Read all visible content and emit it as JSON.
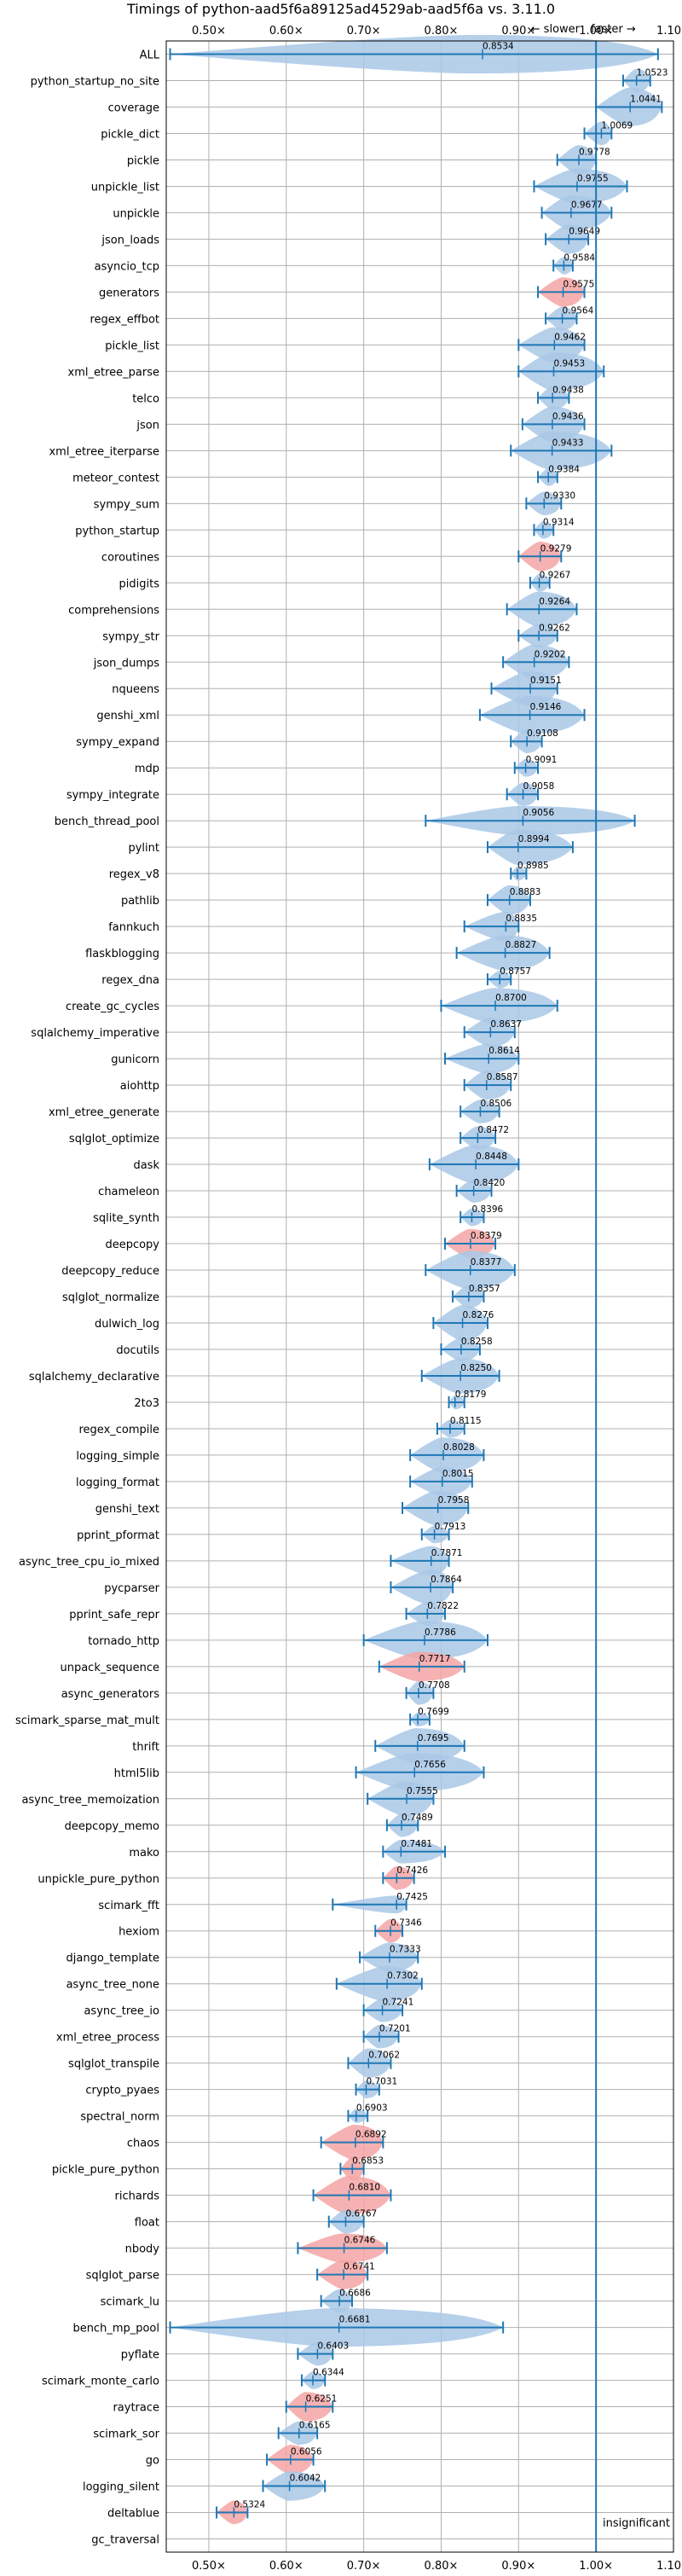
{
  "chart_data": {
    "type": "violin",
    "title": "Timings of python-aad5f6a89125ad4529ab-aad5f6a vs. 3.11.0",
    "annotations": {
      "slower": "← slower",
      "faster": "faster →",
      "insignificant": "insignificant"
    },
    "xlim": [
      0.445,
      1.1
    ],
    "xticks": [
      0.5,
      0.6,
      0.7,
      0.8,
      0.9,
      1.0,
      1.1
    ],
    "xtick_labels": [
      "0.50×",
      "0.60×",
      "0.70×",
      "0.80×",
      "0.90×",
      "1.00×",
      "1.10×"
    ],
    "reference_x": 1.0,
    "grid": true,
    "colors": {
      "normal": "#a9c8e6",
      "highlight": "#f4a5a5",
      "line": "#1f77b4"
    },
    "benchmarks": [
      {
        "name": "ALL",
        "value": 0.8534,
        "label": "0.8534",
        "lo": 0.45,
        "hi": 1.08,
        "width": 0.06,
        "highlight": false
      },
      {
        "name": "python_startup_no_site",
        "value": 1.0523,
        "label": "1.0523",
        "lo": 1.035,
        "hi": 1.07,
        "width": 0.02,
        "highlight": false
      },
      {
        "name": "coverage",
        "value": 1.0441,
        "label": "1.0441",
        "lo": 1.0,
        "hi": 1.085,
        "width": 0.035,
        "highlight": false
      },
      {
        "name": "pickle_dict",
        "value": 1.0069,
        "label": "1.0069",
        "lo": 0.985,
        "hi": 1.02,
        "width": 0.02,
        "highlight": false
      },
      {
        "name": "pickle",
        "value": 0.9778,
        "label": "0.9778",
        "lo": 0.95,
        "hi": 1.0,
        "width": 0.025,
        "highlight": false
      },
      {
        "name": "unpickle_list",
        "value": 0.9755,
        "label": "0.9755",
        "lo": 0.92,
        "hi": 1.04,
        "width": 0.03,
        "highlight": false
      },
      {
        "name": "unpickle",
        "value": 0.9677,
        "label": "0.9677",
        "lo": 0.93,
        "hi": 1.02,
        "width": 0.03,
        "highlight": false
      },
      {
        "name": "json_loads",
        "value": 0.9649,
        "label": "0.9649",
        "lo": 0.935,
        "hi": 0.99,
        "width": 0.025,
        "highlight": false
      },
      {
        "name": "asyncio_tcp",
        "value": 0.9584,
        "label": "0.9584",
        "lo": 0.945,
        "hi": 0.97,
        "width": 0.015,
        "highlight": false
      },
      {
        "name": "generators",
        "value": 0.9575,
        "label": "0.9575",
        "lo": 0.925,
        "hi": 0.985,
        "width": 0.025,
        "highlight": true
      },
      {
        "name": "regex_effbot",
        "value": 0.9564,
        "label": "0.9564",
        "lo": 0.935,
        "hi": 0.975,
        "width": 0.02,
        "highlight": false
      },
      {
        "name": "pickle_list",
        "value": 0.9462,
        "label": "0.9462",
        "lo": 0.9,
        "hi": 0.985,
        "width": 0.03,
        "highlight": false
      },
      {
        "name": "xml_etree_parse",
        "value": 0.9453,
        "label": "0.9453",
        "lo": 0.9,
        "hi": 1.01,
        "width": 0.035,
        "highlight": false
      },
      {
        "name": "telco",
        "value": 0.9438,
        "label": "0.9438",
        "lo": 0.925,
        "hi": 0.965,
        "width": 0.02,
        "highlight": false
      },
      {
        "name": "json",
        "value": 0.9436,
        "label": "0.9436",
        "lo": 0.905,
        "hi": 0.985,
        "width": 0.03,
        "highlight": false
      },
      {
        "name": "xml_etree_iterparse",
        "value": 0.9433,
        "label": "0.9433",
        "lo": 0.89,
        "hi": 1.02,
        "width": 0.035,
        "highlight": false
      },
      {
        "name": "meteor_contest",
        "value": 0.9384,
        "label": "0.9384",
        "lo": 0.925,
        "hi": 0.95,
        "width": 0.015,
        "highlight": false
      },
      {
        "name": "sympy_sum",
        "value": 0.933,
        "label": "0.9330",
        "lo": 0.91,
        "hi": 0.955,
        "width": 0.02,
        "highlight": false
      },
      {
        "name": "python_startup",
        "value": 0.9314,
        "label": "0.9314",
        "lo": 0.92,
        "hi": 0.945,
        "width": 0.015,
        "highlight": false
      },
      {
        "name": "coroutines",
        "value": 0.9279,
        "label": "0.9279",
        "lo": 0.9,
        "hi": 0.955,
        "width": 0.025,
        "highlight": true
      },
      {
        "name": "pidigits",
        "value": 0.9267,
        "label": "0.9267",
        "lo": 0.915,
        "hi": 0.94,
        "width": 0.015,
        "highlight": false
      },
      {
        "name": "comprehensions",
        "value": 0.9264,
        "label": "0.9264",
        "lo": 0.885,
        "hi": 0.975,
        "width": 0.03,
        "highlight": false
      },
      {
        "name": "sympy_str",
        "value": 0.9262,
        "label": "0.9262",
        "lo": 0.9,
        "hi": 0.95,
        "width": 0.02,
        "highlight": false
      },
      {
        "name": "json_dumps",
        "value": 0.9202,
        "label": "0.9202",
        "lo": 0.88,
        "hi": 0.965,
        "width": 0.03,
        "highlight": false
      },
      {
        "name": "nqueens",
        "value": 0.9151,
        "label": "0.9151",
        "lo": 0.865,
        "hi": 0.95,
        "width": 0.03,
        "highlight": false
      },
      {
        "name": "genshi_xml",
        "value": 0.9146,
        "label": "0.9146",
        "lo": 0.85,
        "hi": 0.985,
        "width": 0.035,
        "highlight": false
      },
      {
        "name": "sympy_expand",
        "value": 0.9108,
        "label": "0.9108",
        "lo": 0.89,
        "hi": 0.93,
        "width": 0.02,
        "highlight": false
      },
      {
        "name": "mdp",
        "value": 0.9091,
        "label": "0.9091",
        "lo": 0.895,
        "hi": 0.925,
        "width": 0.015,
        "highlight": false
      },
      {
        "name": "sympy_integrate",
        "value": 0.9058,
        "label": "0.9058",
        "lo": 0.885,
        "hi": 0.925,
        "width": 0.02,
        "highlight": false
      },
      {
        "name": "bench_thread_pool",
        "value": 0.9056,
        "label": "0.9056",
        "lo": 0.78,
        "hi": 1.05,
        "width": 0.025,
        "highlight": false
      },
      {
        "name": "pylint",
        "value": 0.8994,
        "label": "0.8994",
        "lo": 0.86,
        "hi": 0.97,
        "width": 0.03,
        "highlight": false
      },
      {
        "name": "regex_v8",
        "value": 0.8985,
        "label": "0.8985",
        "lo": 0.89,
        "hi": 0.91,
        "width": 0.012,
        "highlight": false
      },
      {
        "name": "pathlib",
        "value": 0.8883,
        "label": "0.8883",
        "lo": 0.86,
        "hi": 0.915,
        "width": 0.025,
        "highlight": false
      },
      {
        "name": "fannkuch",
        "value": 0.8835,
        "label": "0.8835",
        "lo": 0.83,
        "hi": 0.9,
        "width": 0.025,
        "highlight": false
      },
      {
        "name": "flaskblogging",
        "value": 0.8827,
        "label": "0.8827",
        "lo": 0.82,
        "hi": 0.94,
        "width": 0.03,
        "highlight": false
      },
      {
        "name": "regex_dna",
        "value": 0.8757,
        "label": "0.8757",
        "lo": 0.86,
        "hi": 0.89,
        "width": 0.015,
        "highlight": false
      },
      {
        "name": "create_gc_cycles",
        "value": 0.87,
        "label": "0.8700",
        "lo": 0.8,
        "hi": 0.95,
        "width": 0.03,
        "highlight": false
      },
      {
        "name": "sqlalchemy_imperative",
        "value": 0.8637,
        "label": "0.8637",
        "lo": 0.83,
        "hi": 0.895,
        "width": 0.025,
        "highlight": false
      },
      {
        "name": "gunicorn",
        "value": 0.8614,
        "label": "0.8614",
        "lo": 0.805,
        "hi": 0.9,
        "width": 0.025,
        "highlight": false
      },
      {
        "name": "aiohttp",
        "value": 0.8587,
        "label": "0.8587",
        "lo": 0.83,
        "hi": 0.89,
        "width": 0.025,
        "highlight": false
      },
      {
        "name": "xml_etree_generate",
        "value": 0.8506,
        "label": "0.8506",
        "lo": 0.825,
        "hi": 0.875,
        "width": 0.02,
        "highlight": false
      },
      {
        "name": "sqlglot_optimize",
        "value": 0.8472,
        "label": "0.8472",
        "lo": 0.825,
        "hi": 0.87,
        "width": 0.02,
        "highlight": false
      },
      {
        "name": "dask",
        "value": 0.8448,
        "label": "0.8448",
        "lo": 0.785,
        "hi": 0.9,
        "width": 0.035,
        "highlight": false
      },
      {
        "name": "chameleon",
        "value": 0.842,
        "label": "0.8420",
        "lo": 0.82,
        "hi": 0.865,
        "width": 0.02,
        "highlight": false
      },
      {
        "name": "sqlite_synth",
        "value": 0.8396,
        "label": "0.8396",
        "lo": 0.825,
        "hi": 0.855,
        "width": 0.015,
        "highlight": false
      },
      {
        "name": "deepcopy",
        "value": 0.8379,
        "label": "0.8379",
        "lo": 0.805,
        "hi": 0.87,
        "width": 0.025,
        "highlight": true
      },
      {
        "name": "deepcopy_reduce",
        "value": 0.8377,
        "label": "0.8377",
        "lo": 0.78,
        "hi": 0.895,
        "width": 0.035,
        "highlight": false
      },
      {
        "name": "sqlglot_normalize",
        "value": 0.8357,
        "label": "0.8357",
        "lo": 0.815,
        "hi": 0.855,
        "width": 0.02,
        "highlight": false
      },
      {
        "name": "dulwich_log",
        "value": 0.8276,
        "label": "0.8276",
        "lo": 0.79,
        "hi": 0.86,
        "width": 0.03,
        "highlight": false
      },
      {
        "name": "docutils",
        "value": 0.8258,
        "label": "0.8258",
        "lo": 0.8,
        "hi": 0.85,
        "width": 0.02,
        "highlight": false
      },
      {
        "name": "sqlalchemy_declarative",
        "value": 0.825,
        "label": "0.8250",
        "lo": 0.775,
        "hi": 0.875,
        "width": 0.03,
        "highlight": false
      },
      {
        "name": "2to3",
        "value": 0.8179,
        "label": "0.8179",
        "lo": 0.81,
        "hi": 0.83,
        "width": 0.012,
        "highlight": false
      },
      {
        "name": "regex_compile",
        "value": 0.8115,
        "label": "0.8115",
        "lo": 0.795,
        "hi": 0.83,
        "width": 0.015,
        "highlight": false
      },
      {
        "name": "logging_simple",
        "value": 0.8028,
        "label": "0.8028",
        "lo": 0.76,
        "hi": 0.855,
        "width": 0.03,
        "highlight": false
      },
      {
        "name": "logging_format",
        "value": 0.8015,
        "label": "0.8015",
        "lo": 0.76,
        "hi": 0.84,
        "width": 0.025,
        "highlight": false
      },
      {
        "name": "genshi_text",
        "value": 0.7958,
        "label": "0.7958",
        "lo": 0.75,
        "hi": 0.835,
        "width": 0.03,
        "highlight": false
      },
      {
        "name": "pprint_pformat",
        "value": 0.7913,
        "label": "0.7913",
        "lo": 0.775,
        "hi": 0.81,
        "width": 0.015,
        "highlight": false
      },
      {
        "name": "async_tree_cpu_io_mixed",
        "value": 0.7871,
        "label": "0.7871",
        "lo": 0.735,
        "hi": 0.81,
        "width": 0.025,
        "highlight": false
      },
      {
        "name": "pycparser",
        "value": 0.7864,
        "label": "0.7864",
        "lo": 0.735,
        "hi": 0.815,
        "width": 0.03,
        "highlight": false
      },
      {
        "name": "pprint_safe_repr",
        "value": 0.7822,
        "label": "0.7822",
        "lo": 0.755,
        "hi": 0.805,
        "width": 0.02,
        "highlight": false
      },
      {
        "name": "tornado_http",
        "value": 0.7786,
        "label": "0.7786",
        "lo": 0.7,
        "hi": 0.86,
        "width": 0.035,
        "highlight": false
      },
      {
        "name": "unpack_sequence",
        "value": 0.7717,
        "label": "0.7717",
        "lo": 0.72,
        "hi": 0.83,
        "width": 0.025,
        "highlight": true
      },
      {
        "name": "async_generators",
        "value": 0.7708,
        "label": "0.7708",
        "lo": 0.755,
        "hi": 0.79,
        "width": 0.02,
        "highlight": false
      },
      {
        "name": "scimark_sparse_mat_mult",
        "value": 0.7699,
        "label": "0.7699",
        "lo": 0.76,
        "hi": 0.785,
        "width": 0.012,
        "highlight": false
      },
      {
        "name": "thrift",
        "value": 0.7695,
        "label": "0.7695",
        "lo": 0.715,
        "hi": 0.83,
        "width": 0.03,
        "highlight": false
      },
      {
        "name": "html5lib",
        "value": 0.7656,
        "label": "0.7656",
        "lo": 0.69,
        "hi": 0.855,
        "width": 0.035,
        "highlight": false
      },
      {
        "name": "async_tree_memoization",
        "value": 0.7555,
        "label": "0.7555",
        "lo": 0.705,
        "hi": 0.79,
        "width": 0.03,
        "highlight": false
      },
      {
        "name": "deepcopy_memo",
        "value": 0.7489,
        "label": "0.7489",
        "lo": 0.73,
        "hi": 0.77,
        "width": 0.02,
        "highlight": false
      },
      {
        "name": "mako",
        "value": 0.7481,
        "label": "0.7481",
        "lo": 0.725,
        "hi": 0.805,
        "width": 0.02,
        "highlight": false
      },
      {
        "name": "unpickle_pure_python",
        "value": 0.7426,
        "label": "0.7426",
        "lo": 0.725,
        "hi": 0.765,
        "width": 0.02,
        "highlight": true
      },
      {
        "name": "scimark_fft",
        "value": 0.7425,
        "label": "0.7425",
        "lo": 0.66,
        "hi": 0.755,
        "width": 0.015,
        "highlight": false
      },
      {
        "name": "hexiom",
        "value": 0.7346,
        "label": "0.7346",
        "lo": 0.715,
        "hi": 0.75,
        "width": 0.02,
        "highlight": true
      },
      {
        "name": "django_template",
        "value": 0.7333,
        "label": "0.7333",
        "lo": 0.695,
        "hi": 0.77,
        "width": 0.025,
        "highlight": false
      },
      {
        "name": "async_tree_none",
        "value": 0.7302,
        "label": "0.7302",
        "lo": 0.665,
        "hi": 0.775,
        "width": 0.03,
        "highlight": false
      },
      {
        "name": "async_tree_io",
        "value": 0.7241,
        "label": "0.7241",
        "lo": 0.7,
        "hi": 0.75,
        "width": 0.02,
        "highlight": false
      },
      {
        "name": "xml_etree_process",
        "value": 0.7201,
        "label": "0.7201",
        "lo": 0.7,
        "hi": 0.745,
        "width": 0.02,
        "highlight": false
      },
      {
        "name": "sqlglot_transpile",
        "value": 0.7062,
        "label": "0.7062",
        "lo": 0.68,
        "hi": 0.735,
        "width": 0.025,
        "highlight": false
      },
      {
        "name": "crypto_pyaes",
        "value": 0.7031,
        "label": "0.7031",
        "lo": 0.69,
        "hi": 0.72,
        "width": 0.015,
        "highlight": false
      },
      {
        "name": "spectral_norm",
        "value": 0.6903,
        "label": "0.6903",
        "lo": 0.68,
        "hi": 0.705,
        "width": 0.012,
        "highlight": false
      },
      {
        "name": "chaos",
        "value": 0.6892,
        "label": "0.6892",
        "lo": 0.645,
        "hi": 0.725,
        "width": 0.03,
        "highlight": true
      },
      {
        "name": "pickle_pure_python",
        "value": 0.6853,
        "label": "0.6853",
        "lo": 0.67,
        "hi": 0.7,
        "width": 0.02,
        "highlight": true
      },
      {
        "name": "richards",
        "value": 0.681,
        "label": "0.6810",
        "lo": 0.635,
        "hi": 0.735,
        "width": 0.035,
        "highlight": true
      },
      {
        "name": "float",
        "value": 0.6767,
        "label": "0.6767",
        "lo": 0.655,
        "hi": 0.7,
        "width": 0.02,
        "highlight": false
      },
      {
        "name": "nbody",
        "value": 0.6746,
        "label": "0.6746",
        "lo": 0.615,
        "hi": 0.73,
        "width": 0.025,
        "highlight": true
      },
      {
        "name": "sqlglot_parse",
        "value": 0.6741,
        "label": "0.6741",
        "lo": 0.64,
        "hi": 0.705,
        "width": 0.025,
        "highlight": true
      },
      {
        "name": "scimark_lu",
        "value": 0.6686,
        "label": "0.6686",
        "lo": 0.645,
        "hi": 0.685,
        "width": 0.02,
        "highlight": false
      },
      {
        "name": "bench_mp_pool",
        "value": 0.6681,
        "label": "0.6681",
        "lo": 0.45,
        "hi": 0.88,
        "width": 0.04,
        "highlight": false
      },
      {
        "name": "pyflate",
        "value": 0.6403,
        "label": "0.6403",
        "lo": 0.615,
        "hi": 0.66,
        "width": 0.02,
        "highlight": false
      },
      {
        "name": "scimark_monte_carlo",
        "value": 0.6344,
        "label": "0.6344",
        "lo": 0.62,
        "hi": 0.65,
        "width": 0.015,
        "highlight": false
      },
      {
        "name": "raytrace",
        "value": 0.6251,
        "label": "0.6251",
        "lo": 0.6,
        "hi": 0.66,
        "width": 0.025,
        "highlight": true
      },
      {
        "name": "scimark_sor",
        "value": 0.6165,
        "label": "0.6165",
        "lo": 0.59,
        "hi": 0.64,
        "width": 0.02,
        "highlight": false
      },
      {
        "name": "go",
        "value": 0.6056,
        "label": "0.6056",
        "lo": 0.575,
        "hi": 0.635,
        "width": 0.025,
        "highlight": true
      },
      {
        "name": "logging_silent",
        "value": 0.6042,
        "label": "0.6042",
        "lo": 0.57,
        "hi": 0.65,
        "width": 0.025,
        "highlight": false
      },
      {
        "name": "deltablue",
        "value": 0.5324,
        "label": "0.5324",
        "lo": 0.51,
        "hi": 0.55,
        "width": 0.02,
        "highlight": true
      },
      {
        "name": "gc_traversal",
        "value": null,
        "label": "",
        "lo": null,
        "hi": null,
        "width": 0,
        "highlight": false
      }
    ]
  }
}
